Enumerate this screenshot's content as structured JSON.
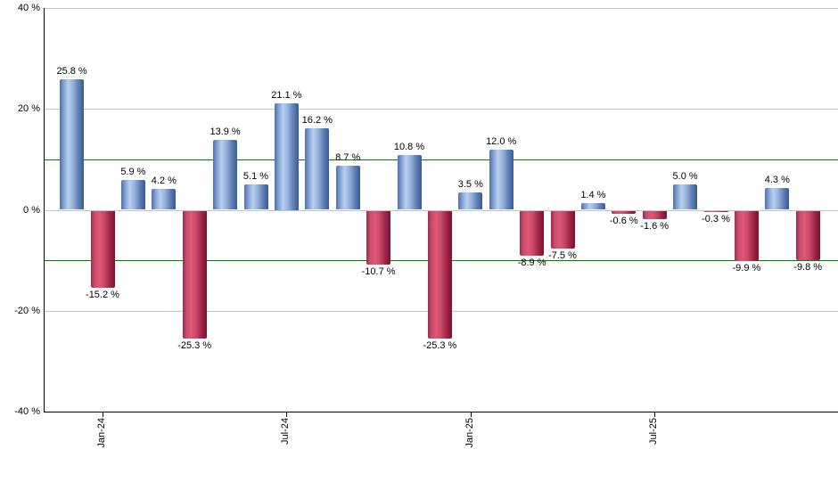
{
  "chart_data": {
    "type": "bar",
    "title": "",
    "xlabel": "",
    "ylabel": "",
    "value_suffix": " %",
    "values": [
      25.8,
      -15.2,
      5.9,
      4.2,
      -25.3,
      13.9,
      5.1,
      21.1,
      16.2,
      8.7,
      -10.7,
      10.8,
      -25.3,
      3.5,
      12.0,
      -8.9,
      -7.5,
      1.4,
      -0.6,
      -1.6,
      5.0,
      -0.3,
      -9.9,
      4.3,
      -9.8
    ],
    "value_labels": [
      "25.8 %",
      "-15.2 %",
      "5.9 %",
      "4.2 %",
      "-25.3 %",
      "13.9 %",
      "5.1 %",
      "21.1 %",
      "16.2 %",
      "8.7 %",
      "-10.7 %",
      "10.8 %",
      "-25.3 %",
      "3.5 %",
      "12.0 %",
      "-8.9 %",
      "-7.5 %",
      "1.4 %",
      "-0.6 %",
      "-1.6 %",
      "5.0 %",
      "-0.3 %",
      "-9.9 %",
      "4.3 %",
      "-9.8 %"
    ],
    "x_axis": {
      "tick_labels": [
        {
          "bar_index": 1,
          "label": "Jan-24"
        },
        {
          "bar_index": 7,
          "label": "Jul-24"
        },
        {
          "bar_index": 13,
          "label": "Jan-25"
        },
        {
          "bar_index": 19,
          "label": "Jul-25"
        }
      ]
    },
    "y_axis": {
      "min": -40,
      "max": 40,
      "ticks": [
        {
          "value": 40,
          "label": "40 %"
        },
        {
          "value": 20,
          "label": "20 %"
        },
        {
          "value": 0,
          "label": "0 %"
        },
        {
          "value": -20,
          "label": "-20 %"
        },
        {
          "value": -40,
          "label": "-40 %"
        }
      ]
    },
    "gridline_values": [
      40,
      20,
      0,
      -20,
      -40
    ],
    "reference_lines": [
      {
        "value": 10,
        "color": "#008000"
      },
      {
        "value": -10,
        "color": "#008000"
      }
    ],
    "legend": "none",
    "colors": {
      "positive_bar": "#7e9dce",
      "positive_bar_highlight": "#b9cfee",
      "positive_bar_edge": "#395b94",
      "negative_bar": "#c74e6c",
      "negative_bar_highlight": "#e25674",
      "negative_bar_edge": "#78132f",
      "gridline": "#c4c4c4",
      "reference_line": "#008000",
      "axis": "#000000",
      "label_text": "#000000",
      "background": "#ffffff"
    }
  }
}
